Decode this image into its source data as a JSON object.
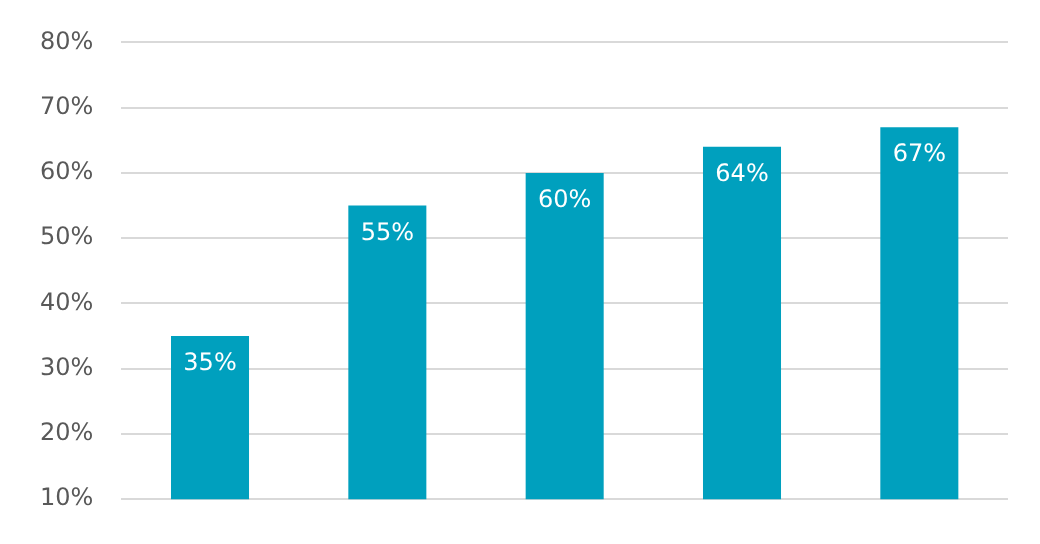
{
  "chart_data": {
    "type": "bar",
    "categories": [
      null,
      null,
      null,
      null,
      null
    ],
    "series": [
      {
        "color": "#00a0be",
        "values": [
          35,
          55,
          60,
          64,
          67
        ],
        "value_labels": [
          "35%",
          "55%",
          "60%",
          "64%",
          "67%"
        ]
      }
    ],
    "ylim": [
      10,
      80
    ],
    "yticks": [
      {
        "value": 10,
        "label": "10%"
      },
      {
        "value": 20,
        "label": "20%"
      },
      {
        "value": 30,
        "label": "30%"
      },
      {
        "value": 40,
        "label": "40%"
      },
      {
        "value": 50,
        "label": "50%"
      },
      {
        "value": 60,
        "label": "60%"
      },
      {
        "value": 70,
        "label": "70%"
      },
      {
        "value": 80,
        "label": "80%"
      }
    ],
    "grid": "y",
    "legend": false
  }
}
